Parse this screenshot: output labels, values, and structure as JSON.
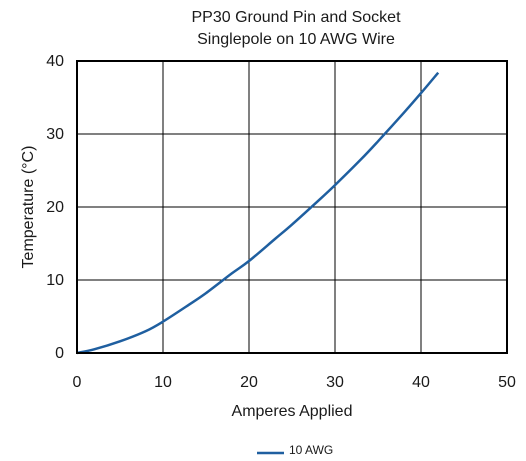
{
  "chart_data": {
    "type": "line",
    "title_lines": [
      "PP30 Ground Pin and Socket",
      "Singlepole on 10 AWG Wire"
    ],
    "xlabel": "Amperes Applied",
    "ylabel": "Temperature (°C)",
    "xlim": [
      0,
      50
    ],
    "ylim": [
      0,
      40
    ],
    "x_ticks": [
      0,
      10,
      20,
      30,
      40,
      50
    ],
    "y_ticks": [
      0,
      10,
      20,
      30,
      40
    ],
    "grid": true,
    "legend_position": "bottom-center",
    "series": [
      {
        "name": "10 AWG",
        "color": "#1f5fa0",
        "x": [
          0,
          2,
          5,
          8,
          10,
          13,
          15,
          18,
          20,
          23,
          25,
          28,
          30,
          33,
          35,
          38,
          40,
          42
        ],
        "y": [
          0,
          0.5,
          1.6,
          3.0,
          4.3,
          6.6,
          8.2,
          10.9,
          12.6,
          15.6,
          17.6,
          20.8,
          23.0,
          26.5,
          29.0,
          32.9,
          35.6,
          38.4
        ]
      }
    ]
  }
}
